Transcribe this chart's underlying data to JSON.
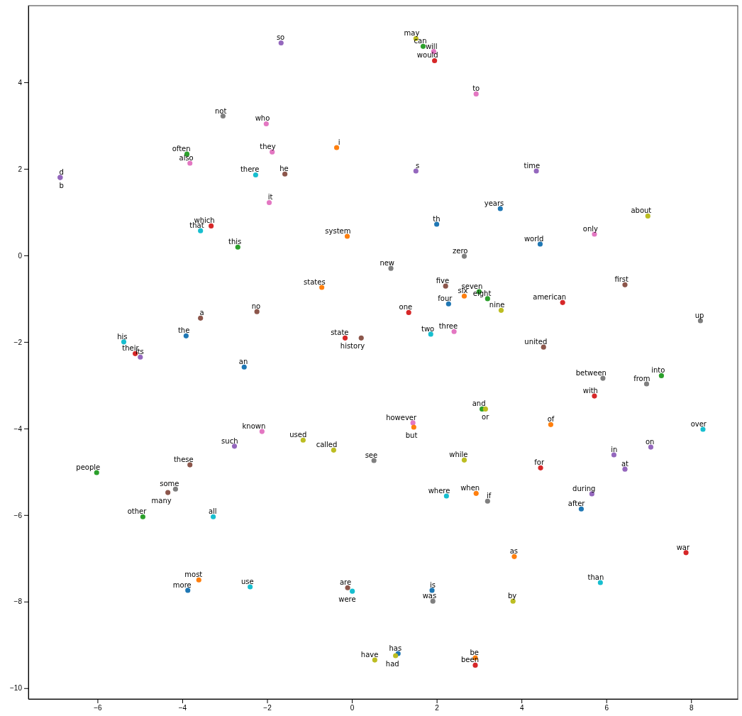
{
  "chart_data": {
    "type": "scatter",
    "marker": "circle",
    "xlim": [
      -7.63,
      9.1
    ],
    "ylim": [
      -10.25,
      5.77
    ],
    "xticks": [
      -6,
      -4,
      -2,
      0,
      2,
      4,
      6,
      8
    ],
    "yticks": [
      -10,
      -8,
      -6,
      -4,
      -2,
      0,
      2,
      4
    ],
    "x": [
      -1.67,
      -3.04,
      -2.02,
      -0.36,
      -3.89,
      -1.88,
      -3.82,
      -2.27,
      -1.58,
      -6.88,
      -6.88,
      -1.95,
      -3.32,
      -3.57,
      -0.11,
      -2.69,
      -0.71,
      -2.24,
      -3.57,
      -3.91,
      -5.38,
      -0.16,
      0.22,
      -5.11,
      -4.99,
      -2.54,
      -2.12,
      -1.15,
      -0.43,
      0.52,
      -2.77,
      -3.82,
      -6.02,
      -4.16,
      -4.34,
      -4.93,
      -3.27,
      -3.61,
      -3.87,
      -2.4,
      -0.1,
      0.01,
      0.54,
      1.51,
      1.68,
      1.93,
      1.95,
      2.93,
      1.51,
      4.35,
      3.5,
      2.0,
      6.98,
      5.72,
      4.44,
      2.65,
      0.92,
      2.21,
      6.44,
      3.0,
      2.65,
      3.2,
      4.97,
      2.28,
      3.52,
      1.34,
      8.22,
      1.86,
      2.41,
      4.52,
      5.92,
      7.3,
      6.95,
      5.72,
      3.07,
      3.15,
      1.44,
      1.46,
      4.69,
      8.28,
      7.05,
      6.18,
      6.44,
      2.65,
      4.45,
      2.23,
      2.93,
      3.2,
      5.66,
      5.41,
      3.83,
      7.88,
      5.86,
      1.89,
      1.91,
      3.8,
      1.09,
      1.03,
      2.91,
      2.91
    ],
    "values": [
      4.91,
      3.22,
      3.04,
      2.49,
      2.34,
      2.39,
      2.13,
      1.86,
      1.88,
      1.8,
      1.8,
      1.22,
      0.68,
      0.57,
      0.44,
      0.19,
      -0.74,
      -1.3,
      -1.45,
      -1.86,
      -2.0,
      -1.91,
      -1.91,
      -2.27,
      -2.35,
      -2.58,
      -4.07,
      -4.27,
      -4.5,
      -4.74,
      -4.41,
      -4.84,
      -5.02,
      -5.4,
      -5.48,
      -6.04,
      -6.04,
      -7.5,
      -7.74,
      -7.66,
      -7.68,
      -7.76,
      -9.35,
      5.01,
      4.83,
      4.71,
      4.5,
      3.73,
      1.95,
      1.95,
      1.08,
      0.72,
      0.91,
      0.49,
      0.26,
      -0.02,
      -0.3,
      -0.71,
      -0.68,
      -0.84,
      -0.94,
      -1.0,
      -1.09,
      -1.12,
      -1.27,
      -1.32,
      -1.51,
      -1.82,
      -1.76,
      -2.12,
      -2.84,
      -2.78,
      -2.97,
      -3.25,
      -3.55,
      -3.55,
      -3.87,
      -3.97,
      -3.91,
      -4.02,
      -4.43,
      -4.61,
      -4.94,
      -4.73,
      -4.91,
      -5.56,
      -5.5,
      -5.68,
      -5.51,
      -5.86,
      -6.96,
      -6.87,
      -7.56,
      -7.74,
      -7.99,
      -7.99,
      -9.2,
      -9.25,
      -9.3,
      -9.47
    ],
    "colors": [
      "#9467bd",
      "#7f7f7f",
      "#e377c2",
      "#ff7f0e",
      "#2ca02c",
      "#e377c2",
      "#e377c2",
      "#17becf",
      "#8c564b",
      "#9467bd",
      "#9467bd",
      "#e377c2",
      "#d62728",
      "#17becf",
      "#ff7f0e",
      "#2ca02c",
      "#ff7f0e",
      "#8c564b",
      "#8c564b",
      "#1f77b4",
      "#17becf",
      "#d62728",
      "#8c564b",
      "#d62728",
      "#9467bd",
      "#1f77b4",
      "#e377c2",
      "#bcbd22",
      "#bcbd22",
      "#7f7f7f",
      "#9467bd",
      "#8c564b",
      "#2ca02c",
      "#7f7f7f",
      "#8c564b",
      "#2ca02c",
      "#17becf",
      "#ff7f0e",
      "#1f77b4",
      "#17becf",
      "#8c564b",
      "#17becf",
      "#bcbd22",
      "#bcbd22",
      "#2ca02c",
      "#e377c2",
      "#d62728",
      "#e377c2",
      "#9467bd",
      "#9467bd",
      "#1f77b4",
      "#1f77b4",
      "#bcbd22",
      "#e377c2",
      "#1f77b4",
      "#7f7f7f",
      "#7f7f7f",
      "#8c564b",
      "#8c564b",
      "#2ca02c",
      "#ff7f0e",
      "#2ca02c",
      "#d62728",
      "#1f77b4",
      "#bcbd22",
      "#d62728",
      "#7f7f7f",
      "#17becf",
      "#e377c2",
      "#8c564b",
      "#7f7f7f",
      "#2ca02c",
      "#7f7f7f",
      "#d62728",
      "#2ca02c",
      "#bcbd22",
      "#e377c2",
      "#ff7f0e",
      "#ff7f0e",
      "#17becf",
      "#9467bd",
      "#9467bd",
      "#9467bd",
      "#bcbd22",
      "#d62728",
      "#17becf",
      "#ff7f0e",
      "#7f7f7f",
      "#9467bd",
      "#1f77b4",
      "#ff7f0e",
      "#d62728",
      "#17becf",
      "#1f77b4",
      "#7f7f7f",
      "#bcbd22",
      "#1f77b4",
      "#bcbd22",
      "#ff7f0e",
      "#d62728"
    ],
    "annotations": [
      {
        "text": "so",
        "x": -1.67,
        "y": 4.91
      },
      {
        "text": "not",
        "x": -3.04,
        "y": 3.22
      },
      {
        "text": "who",
        "x": -2.02,
        "y": 3.04
      },
      {
        "text": "i",
        "x": -0.36,
        "y": 2.49
      },
      {
        "text": "often",
        "x": -3.89,
        "y": 2.34
      },
      {
        "text": "they",
        "x": -1.88,
        "y": 2.39
      },
      {
        "text": "also",
        "x": -3.82,
        "y": 2.13
      },
      {
        "text": "there",
        "x": -2.27,
        "y": 1.86
      },
      {
        "text": "he",
        "x": -1.58,
        "y": 1.88
      },
      {
        "text": "d",
        "x": -6.88,
        "y": 1.8
      },
      {
        "text": "b",
        "x": -6.88,
        "y": 1.8
      },
      {
        "text": "it",
        "x": -1.95,
        "y": 1.22
      },
      {
        "text": "which",
        "x": -3.32,
        "y": 0.68
      },
      {
        "text": "that",
        "x": -3.57,
        "y": 0.57
      },
      {
        "text": "system",
        "x": -0.11,
        "y": 0.44
      },
      {
        "text": "this",
        "x": -2.69,
        "y": 0.19
      },
      {
        "text": "states",
        "x": -0.71,
        "y": -0.74
      },
      {
        "text": "no",
        "x": -2.24,
        "y": -1.3
      },
      {
        "text": "a",
        "x": -3.57,
        "y": -1.45
      },
      {
        "text": "the",
        "x": -3.91,
        "y": -1.86
      },
      {
        "text": "his",
        "x": -5.38,
        "y": -2.0
      },
      {
        "text": "state",
        "x": -0.16,
        "y": -1.91
      },
      {
        "text": "history",
        "x": 0.22,
        "y": -1.91
      },
      {
        "text": "their",
        "x": -5.11,
        "y": -2.27
      },
      {
        "text": "its",
        "x": -4.99,
        "y": -2.35
      },
      {
        "text": "an",
        "x": -2.54,
        "y": -2.58
      },
      {
        "text": "known",
        "x": -2.12,
        "y": -4.07
      },
      {
        "text": "used",
        "x": -1.15,
        "y": -4.27
      },
      {
        "text": "called",
        "x": -0.43,
        "y": -4.5
      },
      {
        "text": "see",
        "x": 0.52,
        "y": -4.74
      },
      {
        "text": "such",
        "x": -2.77,
        "y": -4.41
      },
      {
        "text": "these",
        "x": -3.82,
        "y": -4.84
      },
      {
        "text": "people",
        "x": -6.02,
        "y": -5.02
      },
      {
        "text": "some",
        "x": -4.16,
        "y": -5.4
      },
      {
        "text": "many",
        "x": -4.34,
        "y": -5.48
      },
      {
        "text": "other",
        "x": -4.93,
        "y": -6.04
      },
      {
        "text": "all",
        "x": -3.27,
        "y": -6.04
      },
      {
        "text": "most",
        "x": -3.61,
        "y": -7.5
      },
      {
        "text": "more",
        "x": -3.87,
        "y": -7.74
      },
      {
        "text": "use",
        "x": -2.4,
        "y": -7.66
      },
      {
        "text": "are",
        "x": -0.1,
        "y": -7.68
      },
      {
        "text": "were",
        "x": 0.01,
        "y": -7.76
      },
      {
        "text": "have",
        "x": 0.54,
        "y": -9.35
      },
      {
        "text": "may",
        "x": 1.51,
        "y": 5.01
      },
      {
        "text": "can",
        "x": 1.68,
        "y": 4.83
      },
      {
        "text": "will",
        "x": 1.93,
        "y": 4.71
      },
      {
        "text": "would",
        "x": 1.95,
        "y": 4.5
      },
      {
        "text": "to",
        "x": 2.93,
        "y": 3.73
      },
      {
        "text": "s",
        "x": 1.51,
        "y": 1.95
      },
      {
        "text": "time",
        "x": 4.35,
        "y": 1.95
      },
      {
        "text": "years",
        "x": 3.5,
        "y": 1.08
      },
      {
        "text": "th",
        "x": 2.0,
        "y": 0.72
      },
      {
        "text": "about",
        "x": 6.98,
        "y": 0.91
      },
      {
        "text": "only",
        "x": 5.72,
        "y": 0.49
      },
      {
        "text": "world",
        "x": 4.44,
        "y": 0.26
      },
      {
        "text": "zero",
        "x": 2.65,
        "y": -0.02
      },
      {
        "text": "new",
        "x": 0.92,
        "y": -0.3
      },
      {
        "text": "five",
        "x": 2.21,
        "y": -0.71
      },
      {
        "text": "first",
        "x": 6.44,
        "y": -0.68
      },
      {
        "text": "seven",
        "x": 3.0,
        "y": -0.84
      },
      {
        "text": "six",
        "x": 2.65,
        "y": -0.94
      },
      {
        "text": "eight",
        "x": 3.2,
        "y": -1.0
      },
      {
        "text": "american",
        "x": 4.97,
        "y": -1.09
      },
      {
        "text": "four",
        "x": 2.28,
        "y": -1.12
      },
      {
        "text": "nine",
        "x": 3.52,
        "y": -1.27
      },
      {
        "text": "one",
        "x": 1.34,
        "y": -1.32
      },
      {
        "text": "up",
        "x": 8.22,
        "y": -1.51
      },
      {
        "text": "two",
        "x": 1.86,
        "y": -1.82
      },
      {
        "text": "three",
        "x": 2.41,
        "y": -1.76
      },
      {
        "text": "united",
        "x": 4.52,
        "y": -2.12
      },
      {
        "text": "between",
        "x": 5.92,
        "y": -2.84
      },
      {
        "text": "into",
        "x": 7.3,
        "y": -2.78
      },
      {
        "text": "from",
        "x": 6.95,
        "y": -2.97
      },
      {
        "text": "with",
        "x": 5.72,
        "y": -3.25
      },
      {
        "text": "and",
        "x": 3.07,
        "y": -3.55
      },
      {
        "text": "or",
        "x": 3.15,
        "y": -3.55
      },
      {
        "text": "however",
        "x": 1.44,
        "y": -3.87
      },
      {
        "text": "but",
        "x": 1.46,
        "y": -3.97
      },
      {
        "text": "of",
        "x": 4.69,
        "y": -3.91
      },
      {
        "text": "over",
        "x": 8.28,
        "y": -4.02
      },
      {
        "text": "on",
        "x": 7.05,
        "y": -4.43
      },
      {
        "text": "in",
        "x": 6.18,
        "y": -4.61
      },
      {
        "text": "at",
        "x": 6.44,
        "y": -4.94
      },
      {
        "text": "while",
        "x": 2.65,
        "y": -4.73
      },
      {
        "text": "for",
        "x": 4.45,
        "y": -4.91
      },
      {
        "text": "where",
        "x": 2.23,
        "y": -5.56
      },
      {
        "text": "when",
        "x": 2.93,
        "y": -5.5
      },
      {
        "text": "if",
        "x": 3.2,
        "y": -5.68
      },
      {
        "text": "during",
        "x": 5.66,
        "y": -5.51
      },
      {
        "text": "after",
        "x": 5.41,
        "y": -5.86
      },
      {
        "text": "as",
        "x": 3.83,
        "y": -6.96
      },
      {
        "text": "war",
        "x": 7.88,
        "y": -6.87
      },
      {
        "text": "than",
        "x": 5.86,
        "y": -7.56
      },
      {
        "text": "is",
        "x": 1.89,
        "y": -7.74
      },
      {
        "text": "was",
        "x": 1.91,
        "y": -7.99
      },
      {
        "text": "by",
        "x": 3.8,
        "y": -7.99
      },
      {
        "text": "has",
        "x": 1.09,
        "y": -9.2
      },
      {
        "text": "had",
        "x": 1.03,
        "y": -9.25
      },
      {
        "text": "be",
        "x": 2.91,
        "y": -9.3
      },
      {
        "text": "been",
        "x": 2.91,
        "y": -9.47
      }
    ]
  }
}
